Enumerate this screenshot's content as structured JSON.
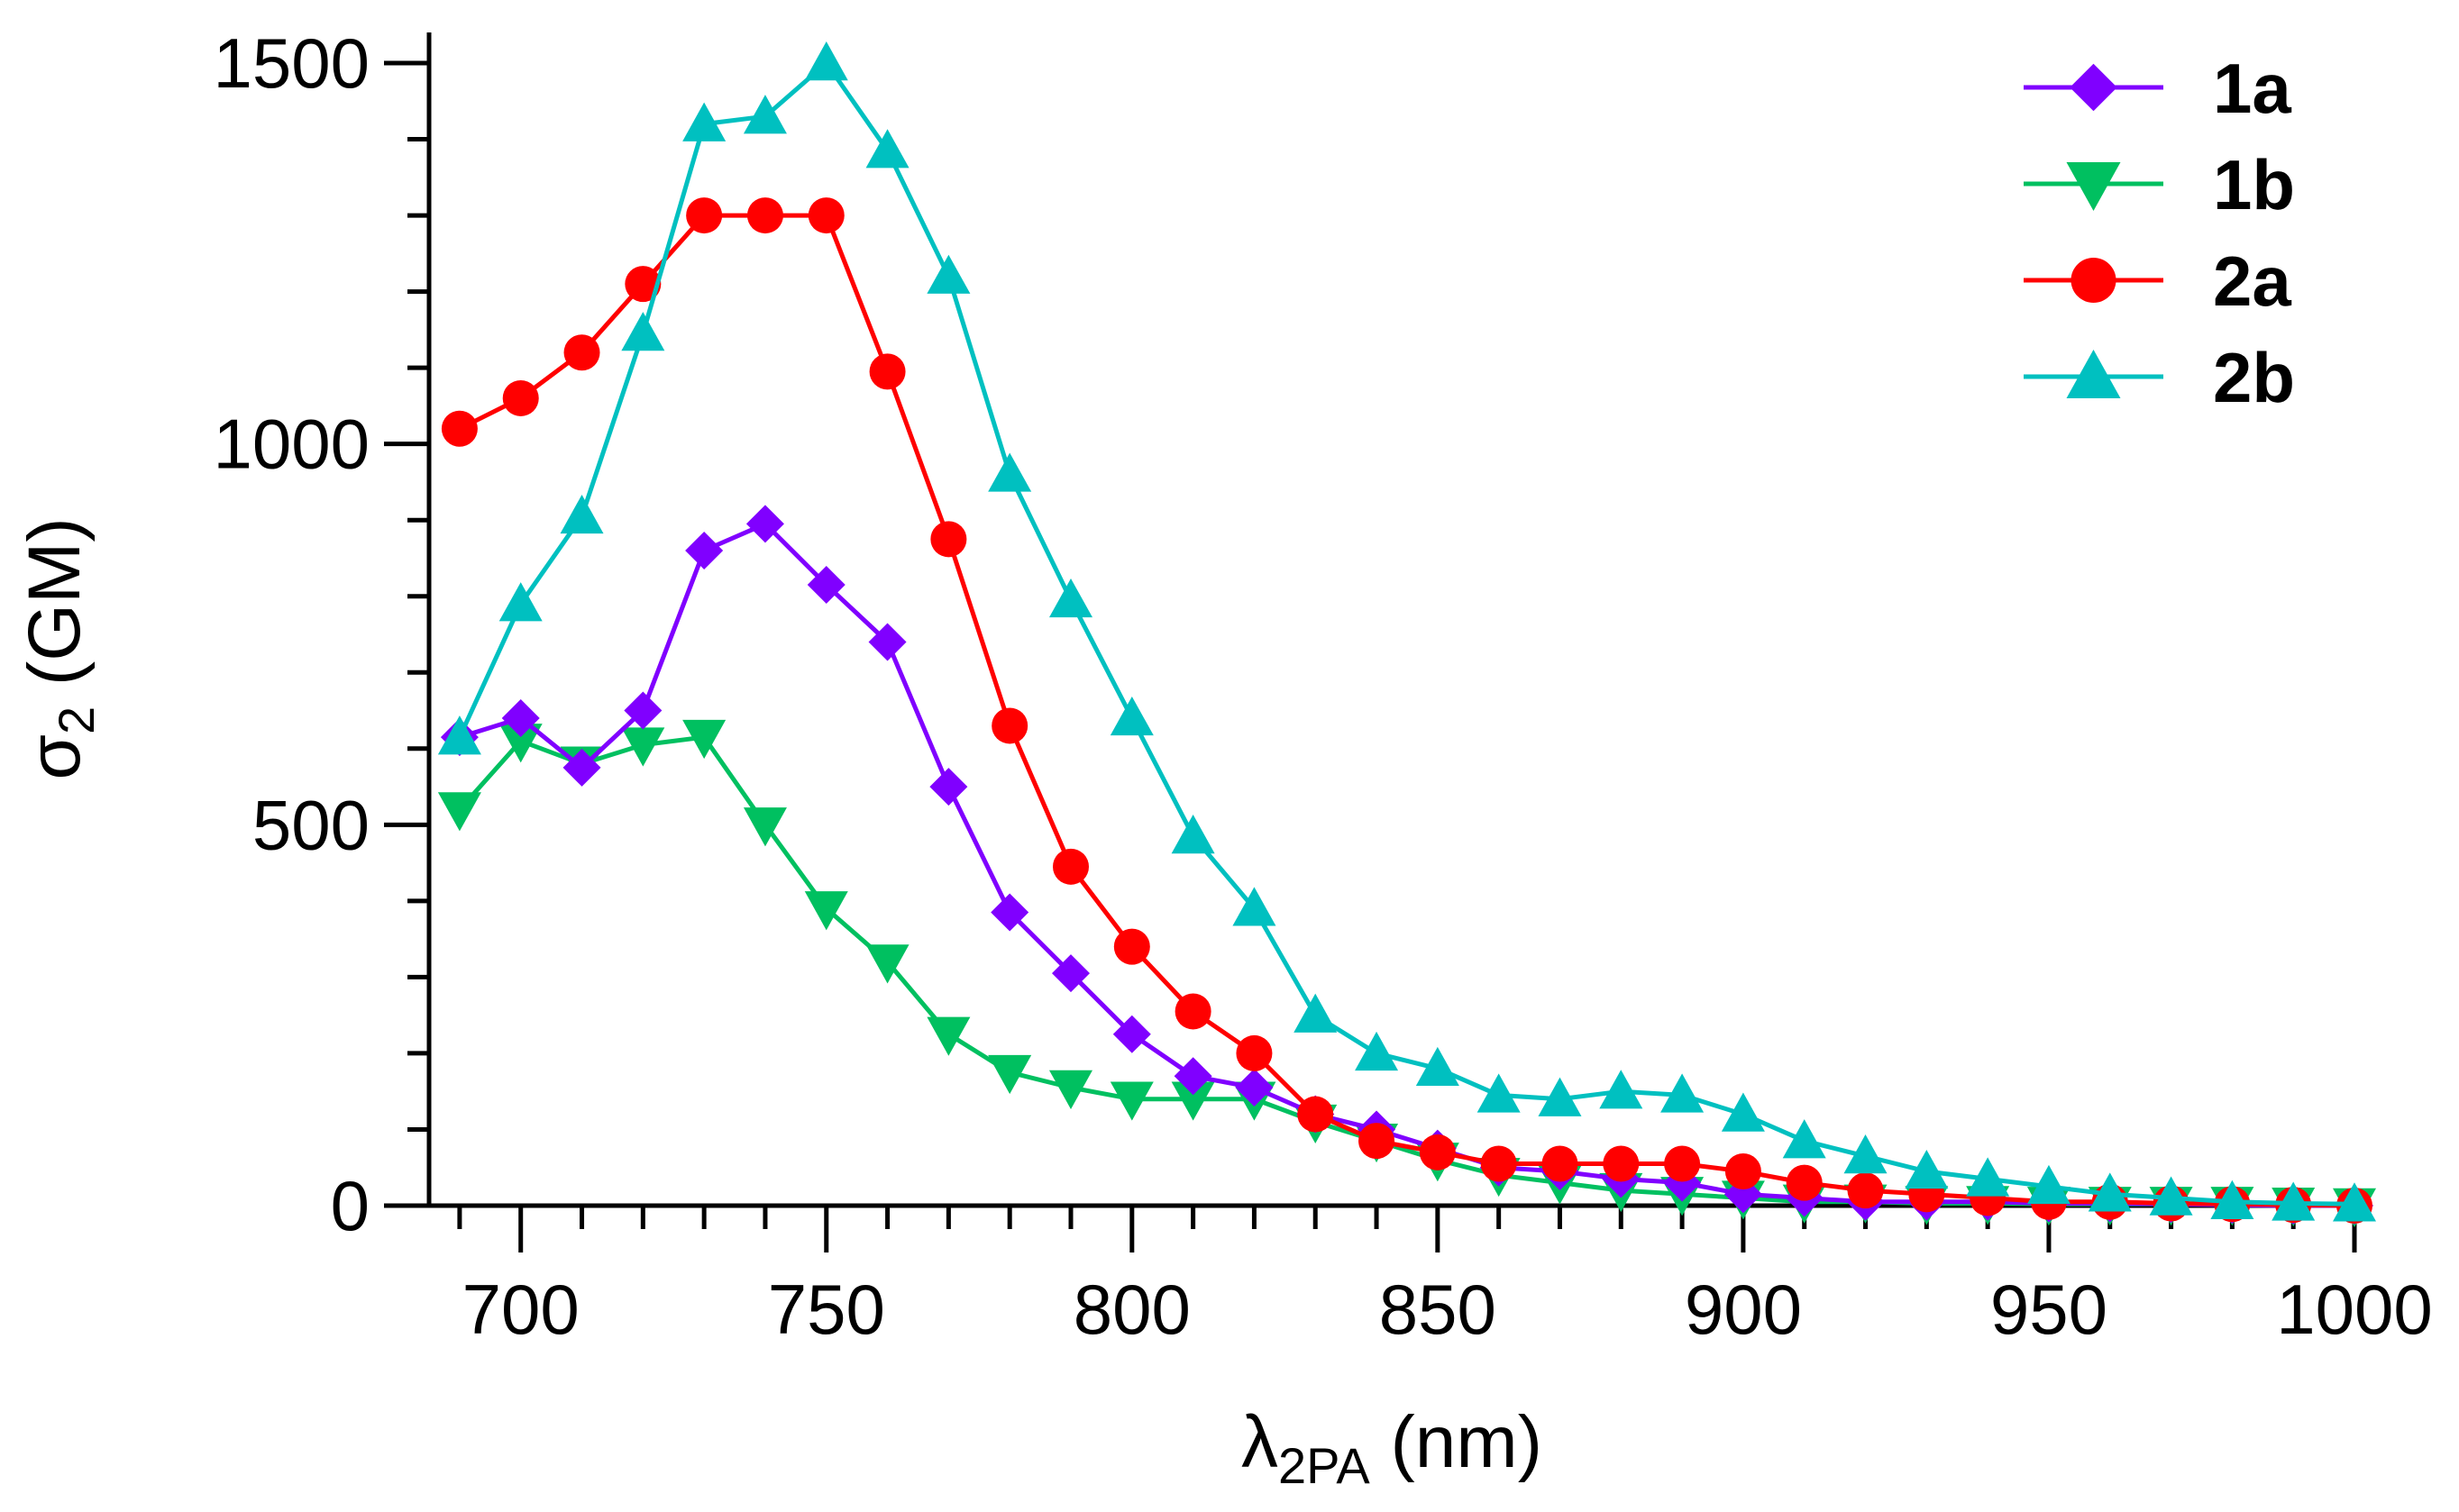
{
  "chart_data": {
    "type": "line",
    "title": "",
    "xlabel": {
      "main": "λ",
      "sub": "2PA",
      "unit": " (nm)"
    },
    "ylabel": {
      "main": "σ",
      "sub": "2",
      "unit": " (GM)"
    },
    "xlim": [
      685,
      1000
    ],
    "ylim": [
      0,
      1500
    ],
    "xticks": [
      700,
      750,
      800,
      850,
      900,
      950,
      1000
    ],
    "yticks": [
      0,
      500,
      1000,
      1500
    ],
    "xtick_labels": [
      "700",
      "750",
      "800",
      "850",
      "900",
      "950",
      "1000"
    ],
    "ytick_labels": [
      "0",
      "500",
      "1000",
      "1500"
    ],
    "grid": false,
    "legend_position": "top-right",
    "x": [
      690,
      700,
      710,
      720,
      730,
      740,
      750,
      760,
      770,
      780,
      790,
      800,
      810,
      820,
      830,
      840,
      850,
      860,
      870,
      880,
      890,
      900,
      910,
      920,
      930,
      940,
      950,
      960,
      970,
      980,
      990,
      1000
    ],
    "series": [
      {
        "name": "1a",
        "color": "#8000ff",
        "marker": "diamond",
        "values": [
          615,
          640,
          575,
          650,
          860,
          895,
          815,
          740,
          550,
          385,
          305,
          225,
          170,
          155,
          120,
          100,
          75,
          50,
          45,
          35,
          30,
          15,
          10,
          5,
          5,
          5,
          3,
          3,
          2,
          1,
          0,
          0
        ]
      },
      {
        "name": "1b",
        "color": "#00c060",
        "marker": "triangle-down",
        "values": [
          520,
          610,
          580,
          605,
          615,
          500,
          390,
          320,
          225,
          175,
          155,
          140,
          140,
          140,
          110,
          85,
          60,
          40,
          30,
          20,
          15,
          10,
          5,
          5,
          3,
          3,
          2,
          2,
          2,
          2,
          1,
          0
        ]
      },
      {
        "name": "2a",
        "color": "#ff0000",
        "marker": "circle",
        "values": [
          1020,
          1060,
          1120,
          1210,
          1300,
          1300,
          1300,
          1095,
          875,
          630,
          445,
          340,
          255,
          200,
          120,
          85,
          70,
          55,
          55,
          55,
          55,
          45,
          30,
          20,
          15,
          10,
          5,
          5,
          3,
          2,
          1,
          0
        ]
      },
      {
        "name": "2b",
        "color": "#00c0c0",
        "marker": "triangle-up",
        "values": [
          615,
          790,
          905,
          1145,
          1420,
          1430,
          1500,
          1385,
          1220,
          960,
          795,
          640,
          485,
          390,
          250,
          200,
          180,
          145,
          140,
          150,
          145,
          120,
          85,
          65,
          45,
          35,
          25,
          15,
          10,
          5,
          3,
          2
        ]
      }
    ]
  }
}
